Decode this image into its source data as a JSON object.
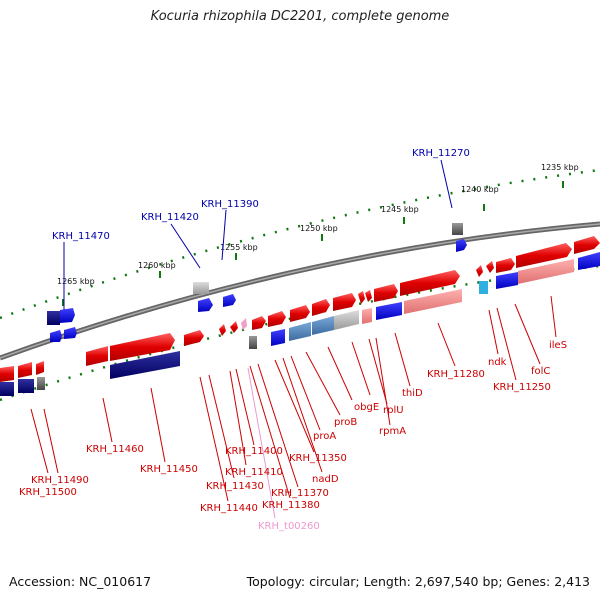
{
  "title": "Kocuria rhizophila DC2201, complete genome",
  "footer": {
    "accession": "Accession: NC_010617",
    "stats": "Topology: circular; Length: 2,697,540 bp; Genes: 2,413"
  },
  "colors": {
    "forward_gene": "#e00000",
    "reverse_gene": "#0000e0",
    "forward_label": "#cc0000",
    "reverse_label": "#0000aa",
    "trna_label": "#ee99cc",
    "backbone": "#777777",
    "tick": "#117711"
  },
  "ticks": [
    "1265 kbp",
    "1260 kbp",
    "1255 kbp",
    "1250 kbp",
    "1245 kbp",
    "1240 kbp",
    "1235 kbp"
  ],
  "reverse_labels": [
    "KRH_11470",
    "KRH_11420",
    "KRH_11390",
    "KRH_11270"
  ],
  "forward_labels": [
    "KRH_11490",
    "KRH_11500",
    "KRH_11460",
    "KRH_11450",
    "KRH_11440",
    "KRH_11430",
    "KRH_11410",
    "KRH_11400",
    "KRH_11380",
    "KRH_11370",
    "KRH_11350",
    "nadD",
    "proA",
    "proB",
    "obgE",
    "rplU",
    "rpmA",
    "thiD",
    "KRH_11280",
    "ndk",
    "KRH_11250",
    "folC",
    "ileS"
  ],
  "trna_labels": [
    "KRH_t00260"
  ]
}
